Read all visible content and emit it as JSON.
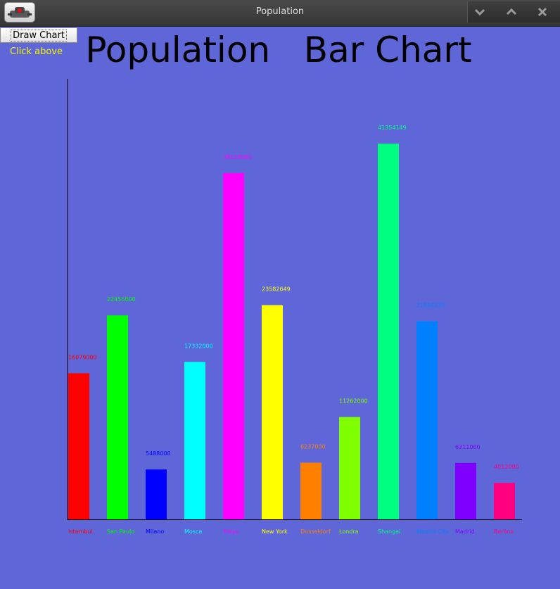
{
  "window": {
    "title": "Population",
    "app_icon": "robot-app-icon",
    "controls": {
      "minimize_icon": "chevron-down-icon",
      "maximize_icon": "chevron-up-icon",
      "close_icon": "close-icon"
    }
  },
  "controls": {
    "draw_button_label": "Draw Chart",
    "hint": "Click above"
  },
  "colors": {
    "background": "#5f66d8",
    "hint_text": "#f4f400"
  },
  "chart_data": {
    "type": "bar",
    "title": "Population   Bar Chart",
    "xlabel": "",
    "ylabel": "",
    "ylim": [
      0,
      48500000
    ],
    "grid": false,
    "categories": [
      "Istambul",
      "San Paulo",
      "Milano",
      "Mosca",
      "Tokyo",
      "New York",
      "Dusseldorf",
      "Londra",
      "Shangai",
      "Mexico City",
      "Madrid",
      "Berlino"
    ],
    "values": [
      16079000,
      22455000,
      5488000,
      17332000,
      38120000,
      23582649,
      6237000,
      11262000,
      41354149,
      21804535,
      6211000,
      4012000
    ],
    "colors": [
      "#ff0000",
      "#00ff00",
      "#0000ff",
      "#00ffff",
      "#ff00ff",
      "#ffff00",
      "#ff8000",
      "#80ff00",
      "#00ff80",
      "#0080ff",
      "#8000ff",
      "#ff0080"
    ]
  }
}
